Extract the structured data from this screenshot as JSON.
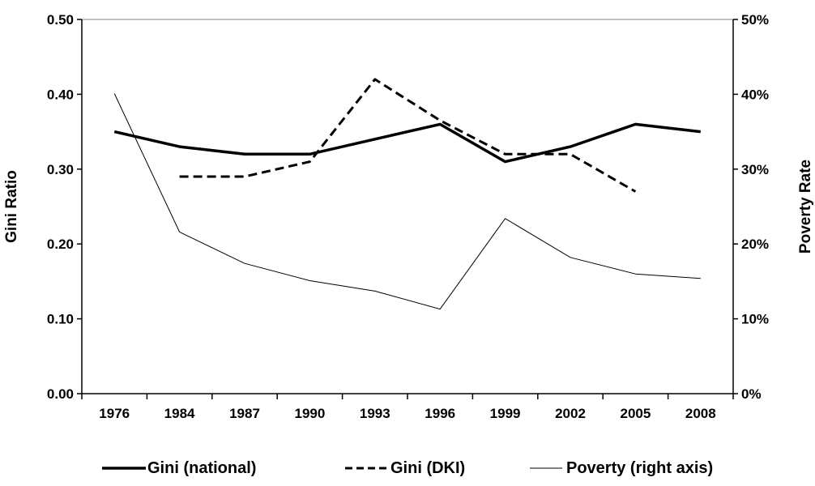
{
  "chart_data": {
    "type": "line",
    "categories": [
      "1976",
      "1984",
      "1987",
      "1990",
      "1993",
      "1996",
      "1999",
      "2002",
      "2005",
      "2008"
    ],
    "ylabel": "Gini Ratio",
    "y2label": "Poverty Rate",
    "ylim": [
      0,
      0.5
    ],
    "y2lim": [
      0,
      50
    ],
    "yticks": [
      "0.00",
      "0.10",
      "0.20",
      "0.30",
      "0.40",
      "0.50"
    ],
    "y2ticks": [
      "0%",
      "10%",
      "20%",
      "30%",
      "40%",
      "50%"
    ],
    "grid": false,
    "legend_position": "bottom",
    "series": [
      {
        "name": "Gini (national)",
        "axis": "left",
        "style": "thick-solid",
        "values": [
          0.35,
          0.33,
          0.32,
          0.32,
          0.34,
          0.36,
          0.31,
          0.33,
          0.36,
          0.35
        ]
      },
      {
        "name": "Gini (DKI)",
        "axis": "left",
        "style": "dashed",
        "values": [
          null,
          0.29,
          0.29,
          0.31,
          0.42,
          0.365,
          0.32,
          0.32,
          0.27,
          null
        ]
      },
      {
        "name": "Poverty (right axis)",
        "axis": "right",
        "style": "thin-solid",
        "values": [
          40.1,
          21.6,
          17.4,
          15.1,
          13.7,
          11.3,
          23.4,
          18.2,
          16.0,
          15.4
        ]
      }
    ]
  }
}
